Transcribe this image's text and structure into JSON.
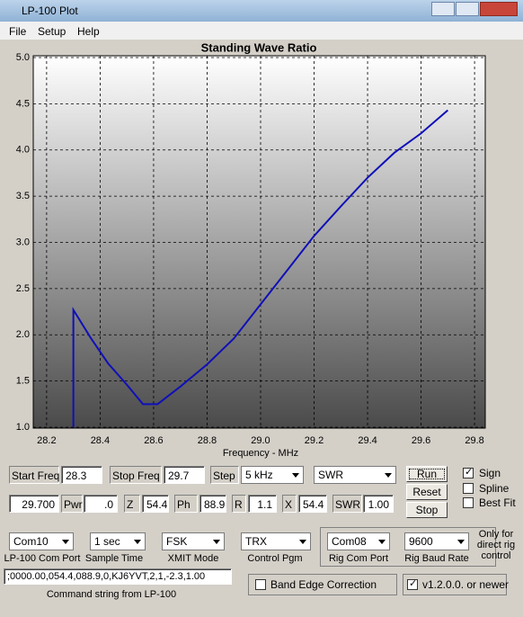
{
  "window": {
    "title": "LP-100 Plot"
  },
  "menu": [
    "File",
    "Setup",
    "Help"
  ],
  "chart_data": {
    "type": "line",
    "title": "Standing Wave Ratio",
    "x_label": "Frequency - MHz",
    "x": [
      28.3,
      28.3,
      28.364,
      28.43,
      28.5,
      28.56,
      28.615,
      28.7,
      28.8,
      28.9,
      29.0,
      29.1,
      29.2,
      29.3,
      29.4,
      29.5,
      29.6,
      29.7
    ],
    "series": [
      {
        "color": "#1010b8",
        "values": [
          1.0,
          2.27,
          1.97,
          1.69,
          1.46,
          1.25,
          1.25,
          1.44,
          1.68,
          1.96,
          2.33,
          2.7,
          3.07,
          3.39,
          3.7,
          3.97,
          4.18,
          4.43
        ]
      }
    ],
    "xlim": [
      28.15,
      29.84
    ],
    "ylim": [
      1.0,
      5.0
    ],
    "xticks": [
      28.2,
      28.4,
      28.6,
      28.8,
      {
        "value": 29.0,
        "label": "29.0"
      },
      29.2,
      29.4,
      29.6,
      29.8
    ],
    "yticks": [
      {
        "value": 1.0,
        "label": "1.0"
      },
      1.5,
      {
        "value": 2.0,
        "label": "2.0"
      },
      2.5,
      {
        "value": 3.0,
        "label": "3.0"
      },
      3.5,
      {
        "value": 4.0,
        "label": "4.0"
      },
      4.5,
      {
        "value": 5.0,
        "label": "5.0"
      }
    ],
    "grid": true
  },
  "controls": {
    "start_freq_label": "Start Freq",
    "start_freq": "28.3",
    "stop_freq_label": "Stop Freq",
    "stop_freq": "29.7",
    "step_label": "Step",
    "step": "5 kHz",
    "mode": "SWR",
    "run": "Run",
    "reset": "Reset",
    "stop": "Stop",
    "sign": "Sign",
    "spline": "Spline",
    "best_fit": "Best Fit",
    "freq": "29.700",
    "pwr_label": "Pwr",
    "pwr": ".0",
    "z_label": "Z",
    "z": "54.4",
    "ph_label": "Ph",
    "ph": "88.9",
    "r_label": "R",
    "r": "1.1",
    "x_label": "X",
    "x": "54.4",
    "swr_label": "SWR",
    "swr": "1.00",
    "com_port": "Com10",
    "com_port_label": "LP-100 Com Port",
    "sample_time": "1 sec",
    "sample_time_label": "Sample Time",
    "xmit_mode": "FSK",
    "xmit_mode_label": "XMIT Mode",
    "control_pgm": "TRX",
    "control_pgm_label": "Control Pgm",
    "rig_com_port": "Com08",
    "rig_com_port_label": "Rig Com Port",
    "rig_baud": "9600",
    "rig_baud_label": "Rig Baud Rate",
    "rig_note": "Only for direct rig control",
    "command_string": ";0000.00,054.4,088.9,0,KJ6YVT,2,1,-2.3,1.00",
    "command_string_label": "Command string from LP-100",
    "band_edge": "Band Edge Correction",
    "version": "v1.2.0.0. or newer"
  }
}
